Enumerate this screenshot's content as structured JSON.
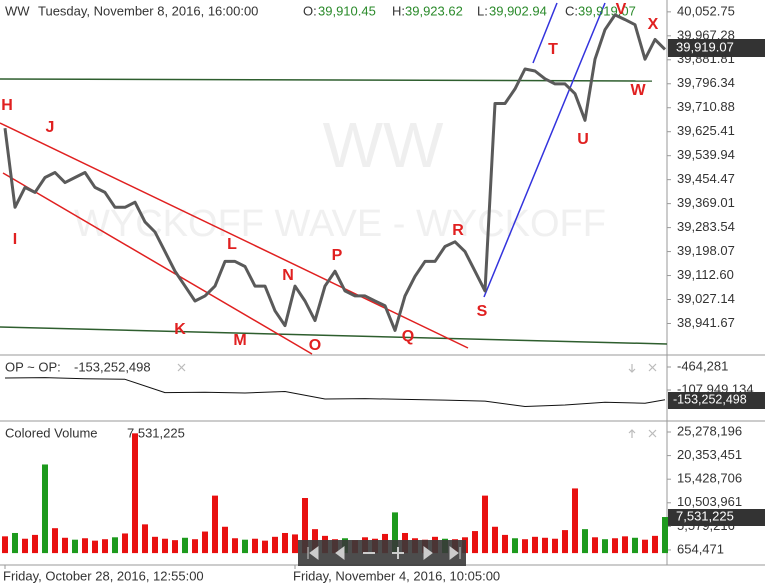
{
  "chart_data": [
    {
      "type": "line",
      "symbol": "WW",
      "datetime": "Tuesday, November 8, 2016, 16:00:00",
      "ohlc": [
        {
          "label": "O:",
          "value": "39,910.45"
        },
        {
          "label": "H:",
          "value": "39,923.62"
        },
        {
          "label": "L:",
          "value": "39,902.94"
        },
        {
          "label": "C:",
          "value": "39,919.07"
        }
      ],
      "watermark": [
        "WW",
        "WYCKOFF WAVE - WYCKOFF"
      ],
      "annotations": [
        "H",
        "I",
        "J",
        "K",
        "L",
        "M",
        "N",
        "O",
        "P",
        "Q",
        "R",
        "S",
        "T",
        "U",
        "V",
        "W",
        "X"
      ],
      "color": "#5a5a5a",
      "values": [
        39638,
        39356,
        39427,
        39409,
        39462,
        39480,
        39444,
        39462,
        39480,
        39427,
        39409,
        39356,
        39356,
        39374,
        39304,
        39268,
        39198,
        39128,
        39075,
        39022,
        39040,
        39075,
        39163,
        39163,
        39145,
        39075,
        39075,
        38987,
        38934,
        39075,
        39022,
        38952,
        39075,
        39128,
        39058,
        39040,
        39040,
        39022,
        39005,
        38917,
        39040,
        39110,
        39163,
        39163,
        39216,
        39233,
        39198,
        39128,
        39058,
        39726,
        39726,
        39778,
        39849,
        39842,
        39814,
        39796,
        39796,
        39761,
        39666,
        39884,
        39989,
        40042,
        40025,
        40007,
        39884,
        39954,
        39919
      ],
      "ylim": [
        38840,
        40095
      ],
      "yticks": [
        {
          "value": 40052.75,
          "label": "40,052.75"
        },
        {
          "value": 39967.28,
          "label": "39,967.28"
        },
        {
          "value": 39881.81,
          "label": "39,881.81"
        },
        {
          "value": 39796.34,
          "label": "39,796.34"
        },
        {
          "value": 39710.88,
          "label": "39,710.88"
        },
        {
          "value": 39625.41,
          "label": "39,625.41"
        },
        {
          "value": 39539.94,
          "label": "39,539.94"
        },
        {
          "value": 39454.47,
          "label": "39,454.47"
        },
        {
          "value": 39369.01,
          "label": "39,369.01"
        },
        {
          "value": 39283.54,
          "label": "39,283.54"
        },
        {
          "value": 39198.07,
          "label": "39,198.07"
        },
        {
          "value": 39112.6,
          "label": "39,112.60"
        },
        {
          "value": 39027.14,
          "label": "39,027.14"
        },
        {
          "value": 38941.67,
          "label": "38,941.67"
        }
      ]
    },
    {
      "type": "line",
      "legend": "OP ~ OP:",
      "last_label": "-153,252,498",
      "color": "#111111",
      "x": [
        0,
        4,
        8,
        12,
        16,
        20,
        24,
        28,
        32,
        36,
        40,
        44,
        48,
        52,
        56,
        60,
        64,
        66
      ],
      "values": [
        -52000000,
        -50000000,
        -55000000,
        -58000000,
        -120000000,
        -118000000,
        -122000000,
        -115000000,
        -150000000,
        -148000000,
        -152000000,
        -155000000,
        -160000000,
        -185000000,
        -178000000,
        -165000000,
        -170000000,
        -153252498
      ],
      "ylim": [
        -238800000,
        41600000
      ],
      "yticks": [
        {
          "value": -464281,
          "label": "-464,281"
        },
        {
          "value": -107949134,
          "label": "-107,949,134"
        }
      ]
    },
    {
      "type": "bar",
      "legend": "Colored Volume",
      "last_label": "7,531,225",
      "values": [
        3500000,
        4200000,
        3000000,
        3800000,
        18500000,
        5200000,
        3200000,
        2800000,
        3100000,
        2600000,
        2900000,
        3300000,
        4100000,
        25000000,
        6000000,
        3400000,
        3000000,
        2700000,
        3200000,
        2900000,
        4500000,
        12000000,
        5500000,
        3100000,
        2800000,
        3000000,
        2600000,
        3400000,
        4200000,
        3900000,
        11500000,
        5000000,
        3600000,
        2900000,
        3100000,
        2700000,
        3300000,
        3000000,
        4000000,
        8500000,
        4200000,
        3100000,
        2800000,
        3400000,
        3000000,
        2900000,
        3300000,
        4600000,
        12000000,
        5500000,
        3800000,
        3100000,
        2900000,
        3400000,
        3200000,
        3000000,
        4800000,
        13500000,
        5000000,
        3300000,
        2900000,
        3100000,
        3500000,
        3200000,
        2800000,
        3600000,
        7531225
      ],
      "colors": [
        "#e81010",
        "#1d9a1d",
        "#e81010",
        "#e81010",
        "#1d9a1d",
        "#e81010",
        "#e81010",
        "#1d9a1d",
        "#e81010",
        "#e81010",
        "#e81010",
        "#1d9a1d",
        "#e81010",
        "#e81010",
        "#e81010",
        "#e81010",
        "#e81010",
        "#e81010",
        "#1d9a1d",
        "#e81010",
        "#e81010",
        "#e81010",
        "#e81010",
        "#e81010",
        "#1d9a1d",
        "#e81010",
        "#e81010",
        "#e81010",
        "#e81010",
        "#e81010",
        "#e81010",
        "#e81010",
        "#e81010",
        "#e81010",
        "#1d9a1d",
        "#e81010",
        "#e81010",
        "#e81010",
        "#e81010",
        "#1d9a1d",
        "#e81010",
        "#e81010",
        "#e81010",
        "#e81010",
        "#1d9a1d",
        "#e81010",
        "#e81010",
        "#e81010",
        "#e81010",
        "#e81010",
        "#e81010",
        "#1d9a1d",
        "#e81010",
        "#e81010",
        "#e81010",
        "#e81010",
        "#e81010",
        "#e81010",
        "#1d9a1d",
        "#e81010",
        "#1d9a1d",
        "#e81010",
        "#e81010",
        "#1d9a1d",
        "#e81010",
        "#e81010",
        "#1d9a1d"
      ],
      "ylim": [
        -1440000,
        26740000
      ],
      "yticks": [
        {
          "value": 25278196,
          "label": "25,278,196"
        },
        {
          "value": 20353451,
          "label": "20,353,451"
        },
        {
          "value": 15428706,
          "label": "15,428,706"
        },
        {
          "value": 10503961,
          "label": "10,503,961"
        },
        {
          "value": 5579216,
          "label": "5,579,216"
        },
        {
          "value": 654471,
          "label": "654,471"
        }
      ],
      "xticks": [
        {
          "value": 0,
          "label": "Friday, October 28, 2016, 12:55:00"
        },
        {
          "value": 29,
          "label": "Friday, November 4, 2016, 10:05:00"
        }
      ]
    }
  ]
}
